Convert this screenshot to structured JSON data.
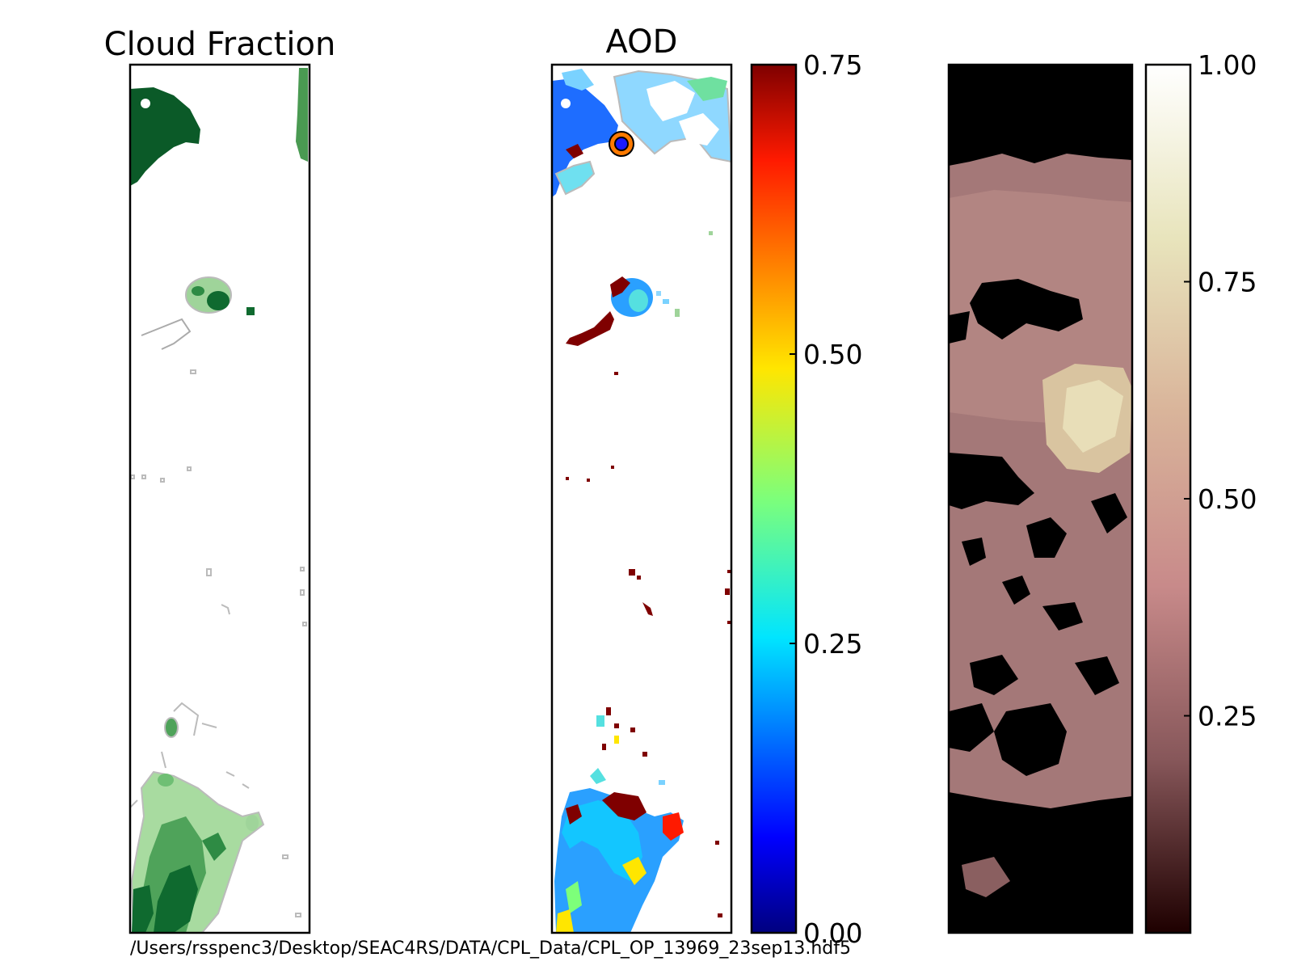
{
  "chart_data": [
    {
      "type": "heatmap",
      "title": "Cloud Fraction",
      "colormap": "Greens",
      "features": [
        {
          "label": "dense cloud top-left",
          "row": 0.09,
          "col": 0.2
        },
        {
          "label": "cloud patch mid",
          "row": 0.28,
          "col": 0.45
        },
        {
          "label": "scattered cloud bottom",
          "row": 0.88,
          "col": 0.35
        }
      ]
    },
    {
      "type": "heatmap",
      "title": "AOD",
      "colormap": "jet",
      "colorbar": {
        "range": [
          0.0,
          0.75
        ],
        "ticks": [
          "0.75",
          "0.50",
          "0.25",
          "0.00"
        ]
      },
      "marker": {
        "label": "CPL location",
        "row": 0.09,
        "col": 0.38,
        "face_color": "#1a1aff",
        "edge_color": "#ff7a00"
      }
    },
    {
      "type": "heatmap",
      "title": "",
      "colormap": "pink",
      "colorbar": {
        "range": [
          0.0,
          1.0
        ],
        "ticks": [
          "1.00",
          "0.75",
          "0.50",
          "0.25"
        ]
      }
    }
  ],
  "footer": {
    "file_path": "/Users/rsspenc3/Desktop/SEAC4RS/DATA/CPL_Data/CPL_OP_13969_23sep13.hdf5"
  }
}
